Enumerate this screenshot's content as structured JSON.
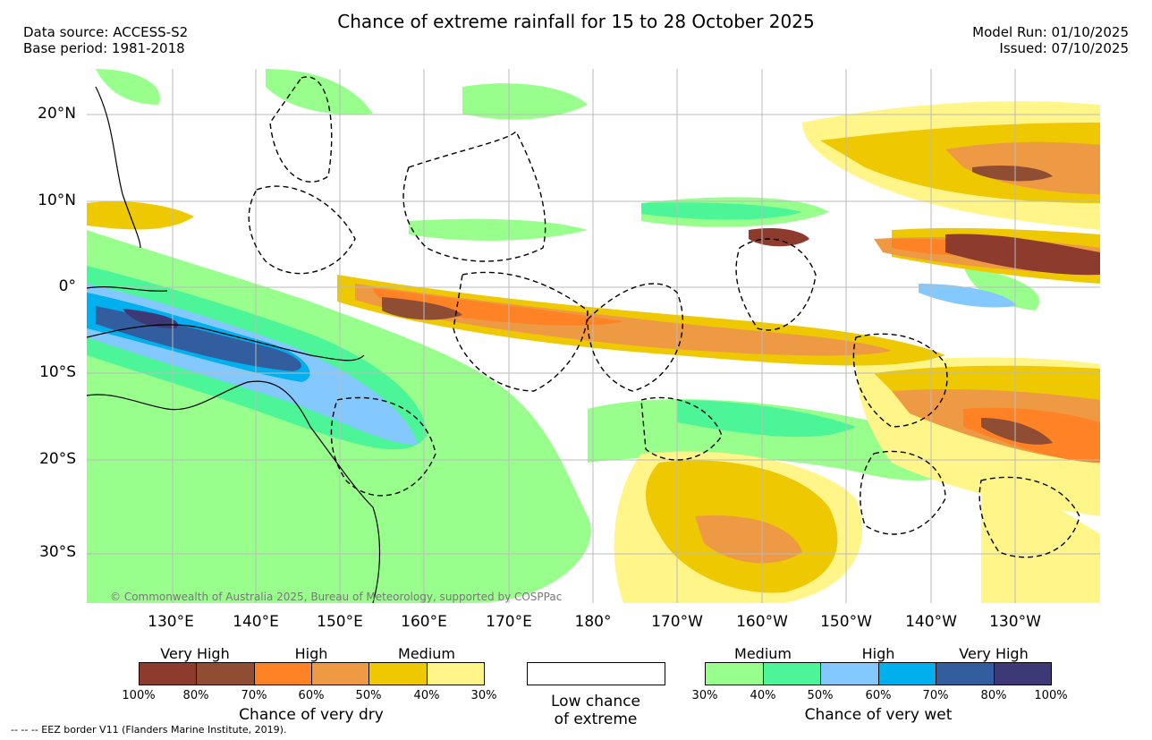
{
  "title": "Chance of extreme rainfall for 15 to 28 October 2025",
  "data_source": "Data source: ACCESS-S2",
  "base_period": "Base period: 1981-2018",
  "model_run": "Model Run: 01/10/2025",
  "issued": "Issued: 07/10/2025",
  "lat_labels": [
    "20°N",
    "10°N",
    "0°",
    "10°S",
    "20°S",
    "30°S"
  ],
  "lon_labels": [
    "130°E",
    "140°E",
    "150°E",
    "160°E",
    "170°E",
    "180°",
    "170°W",
    "160°W",
    "150°W",
    "140°W",
    "130°W"
  ],
  "copyright": "© Commonwealth of Australia 2025, Bureau of Meteorology, supported by COSPPac",
  "footer": "--  --  -- EEZ border V11 (Flanders Marine Institute, 2019).",
  "legend": {
    "dry": {
      "labels": [
        "Very High",
        "High",
        "Medium"
      ],
      "colors": [
        "#8c3b2c",
        "#8f4e33",
        "#ff8224",
        "#ee9a45",
        "#eec800",
        "#fff589"
      ],
      "ticks": [
        "100%",
        "80%",
        "70%",
        "60%",
        "50%",
        "40%",
        "30%"
      ],
      "caption": "Chance of very dry"
    },
    "low": {
      "caption1": "Low chance",
      "caption2": "of extreme"
    },
    "wet": {
      "labels": [
        "Medium",
        "High",
        "Very High"
      ],
      "colors": [
        "#99ff8c",
        "#4cf598",
        "#83c9ff",
        "#00afee",
        "#325d9e",
        "#3d3977"
      ],
      "ticks": [
        "30%",
        "40%",
        "50%",
        "60%",
        "70%",
        "80%",
        "100%"
      ],
      "caption": "Chance of very wet"
    }
  }
}
